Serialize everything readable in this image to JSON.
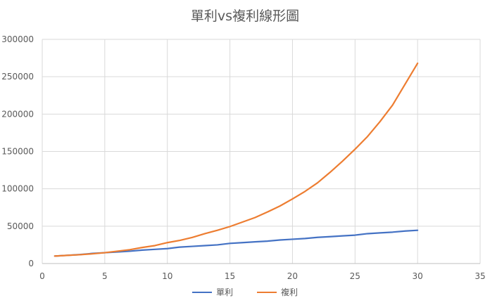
{
  "chart_data": {
    "type": "line",
    "title": "單利vs複利線形圖",
    "xlabel": "",
    "ylabel": "",
    "xlim": [
      0,
      35
    ],
    "ylim": [
      0,
      300000
    ],
    "x_ticks": [
      "0",
      "5",
      "10",
      "15",
      "20",
      "25",
      "30",
      "35"
    ],
    "y_ticks": [
      "0",
      "50000",
      "100000",
      "150000",
      "200000",
      "250000",
      "300000"
    ],
    "grid": true,
    "legend_position": "bottom",
    "x": [
      1,
      2,
      3,
      4,
      5,
      6,
      7,
      8,
      9,
      10,
      11,
      12,
      13,
      14,
      15,
      16,
      17,
      18,
      19,
      20,
      21,
      22,
      23,
      24,
      25,
      26,
      27,
      28,
      29,
      30
    ],
    "series": [
      {
        "name": "單利",
        "color": "#4472C4",
        "values": [
          10000,
          11000,
          12000,
          13500,
          14500,
          15500,
          16500,
          18000,
          19000,
          20000,
          22000,
          23000,
          24000,
          25000,
          27000,
          28000,
          29000,
          30000,
          31500,
          32500,
          33500,
          35000,
          36000,
          37000,
          38000,
          40000,
          41000,
          42000,
          43500,
          44500
        ]
      },
      {
        "name": "複利",
        "color": "#ED7D31",
        "values": [
          10000,
          10900,
          11800,
          13000,
          14500,
          16500,
          18500,
          21500,
          24000,
          28000,
          31000,
          35000,
          40000,
          44500,
          49500,
          55500,
          61500,
          69000,
          77000,
          86500,
          96500,
          108000,
          122000,
          137000,
          153000,
          170000,
          190000,
          212000,
          240000,
          268000
        ]
      }
    ]
  }
}
